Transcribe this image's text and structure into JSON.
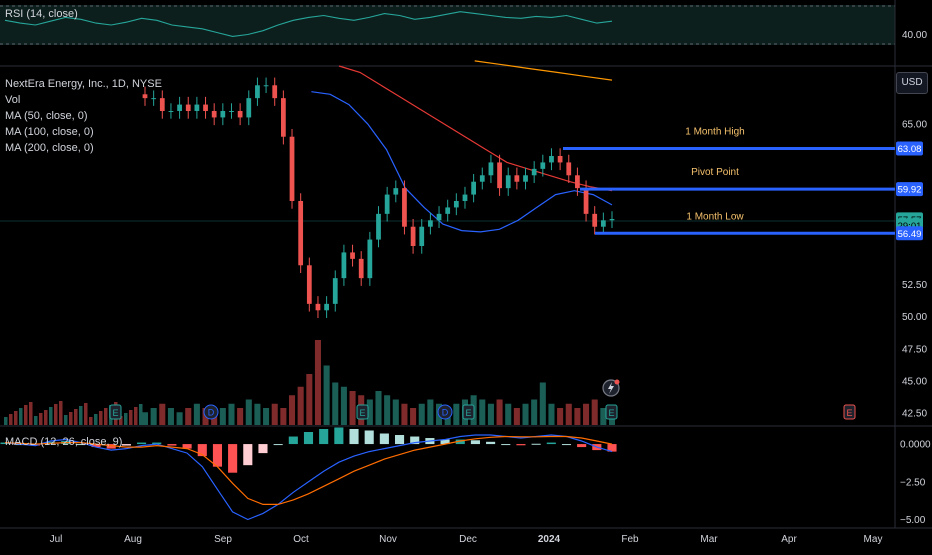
{
  "rsi_panel": {
    "label": "RSI (14, close)",
    "axis_label": "40.00"
  },
  "main_panel": {
    "symbol_line": "NextEra Energy, Inc., 1D, NYSE",
    "indicators": [
      "Vol",
      "MA (50, close, 0)",
      "MA (100, close, 0)",
      "MA (200, close, 0)"
    ],
    "currency": "USD",
    "earnings_marker": "E",
    "dividend_marker": "D"
  },
  "macd_panel": {
    "label": "MACD (12, 26, close, 9)"
  },
  "colors": {
    "up": "#26a69a",
    "down": "#ef5350",
    "ma50": "#2962ff",
    "ma100": "#e53935",
    "ma200": "#ff9800",
    "level_line": "#2962ff",
    "annotation_text": "#f5c16c",
    "rsi_line": "#26a69a",
    "macd_line": "#2962ff",
    "signal_line": "#ff6d00"
  },
  "chart_data": [
    {
      "type": "candlestick",
      "title": "NextEra Energy, Inc., 1D, NYSE",
      "x": [
        "Jul",
        "Aug",
        "Sep",
        "Oct",
        "Nov",
        "Dec",
        "2024",
        "Feb",
        "Mar",
        "Apr",
        "May"
      ],
      "y_ticks": [
        42.5,
        45.0,
        47.5,
        50.0,
        52.5,
        55.0,
        57.5,
        60.0,
        62.5,
        65.0,
        67.5
      ],
      "y_tick_labels": [
        "42.50",
        "45.00",
        "47.50",
        "50.00",
        "52.50",
        "",
        "",
        "",
        "",
        "65.00",
        ""
      ],
      "ylim": [
        41.5,
        69.5
      ],
      "close_series": [
        67,
        67,
        66,
        66,
        66.5,
        66,
        66.5,
        66,
        65.5,
        66,
        66,
        65.5,
        67,
        68,
        68,
        67,
        64,
        59,
        54,
        51,
        50.5,
        51,
        53,
        55,
        54.5,
        53,
        56,
        58,
        59.5,
        60,
        57,
        55.5,
        57,
        57.5,
        58,
        58.5,
        59,
        59.5,
        60.5,
        61,
        62,
        60,
        61,
        60.5,
        61,
        61.5,
        62,
        62.5,
        62,
        61,
        60,
        58,
        57,
        57.5,
        57.6
      ],
      "price_labels": [
        {
          "text": "63.08",
          "value": 63.08
        },
        {
          "text": "59.92",
          "value": 59.92
        },
        {
          "text": "57.57",
          "value": 57.57
        },
        {
          "text": "29:01",
          "value": 57.1
        },
        {
          "text": "56.49",
          "value": 56.49
        }
      ],
      "levels": [
        {
          "name": "1 Month High",
          "value": 63.08
        },
        {
          "name": "Pivot Point",
          "value": 59.92
        },
        {
          "name": "1 Month Low",
          "value": 56.49
        }
      ],
      "moving_averages": [
        {
          "name": "MA (50, close, 0)",
          "values": [
            null,
            null,
            null,
            67.5,
            67.3,
            66.5,
            65,
            63,
            60,
            58.5,
            57.2,
            56.7,
            56.6,
            56.8,
            57.5,
            58.5,
            59.5,
            59.8,
            59.5,
            58.7
          ]
        },
        {
          "name": "MA (100, close, 0)",
          "values": [
            null,
            null,
            null,
            null,
            69.5,
            69,
            68,
            67,
            66,
            65,
            64,
            63,
            62,
            61.5,
            61,
            60.5,
            60.1,
            59.8
          ]
        },
        {
          "name": "MA (200, close, 0)",
          "values": [
            null,
            null,
            null,
            null,
            null,
            null,
            null,
            null,
            69.9,
            69.6,
            69.3,
            69,
            68.7,
            68.4
          ]
        }
      ]
    },
    {
      "type": "bar",
      "title": "Vol",
      "values": [
        3,
        4,
        5,
        4,
        3,
        4,
        5,
        4,
        3,
        4,
        5,
        4,
        6,
        5,
        4,
        5,
        4,
        7,
        9,
        12,
        20,
        14,
        10,
        9,
        8,
        7,
        6,
        8,
        7,
        6,
        5,
        4,
        5,
        6,
        5,
        4,
        5,
        6,
        7,
        6,
        5,
        6,
        5,
        4,
        5,
        6,
        10,
        5,
        4,
        5,
        4,
        5,
        6,
        4,
        3
      ]
    },
    {
      "type": "line",
      "title": "RSI (14, close)",
      "y_ticks": [
        40
      ],
      "values": [
        55,
        52,
        50,
        54,
        58,
        56,
        52,
        50,
        53,
        57,
        55,
        50,
        48,
        46,
        42,
        38,
        40,
        44,
        50,
        55,
        58,
        60,
        57,
        55,
        58,
        62,
        60,
        56,
        58,
        61,
        64,
        62,
        60,
        58,
        57,
        59,
        58,
        60,
        56,
        52,
        54
      ]
    },
    {
      "type": "line",
      "title": "MACD (12, 26, close, 9)",
      "y_ticks": [
        0.0,
        -2.5,
        -5.0
      ],
      "y_tick_labels": [
        "0.0000",
        "−2.50",
        "−5.00"
      ],
      "ylim": [
        -5.3,
        0.8
      ],
      "series": [
        {
          "name": "MACD",
          "values": [
            0.1,
            0.0,
            -0.1,
            0.2,
            0.3,
            0.1,
            -0.2,
            -0.4,
            -0.3,
            -0.1,
            0.0,
            -0.3,
            -0.6,
            -1.5,
            -3.0,
            -4.5,
            -5.0,
            -4.6,
            -4.0,
            -3.2,
            -2.5,
            -1.8,
            -1.2,
            -0.8,
            -0.5,
            -0.3,
            -0.1,
            0.1,
            0.2,
            0.3,
            0.5,
            0.6,
            0.6,
            0.5,
            0.4,
            0.5,
            0.6,
            0.5,
            0.2,
            -0.2,
            -0.5
          ]
        },
        {
          "name": "Signal",
          "values": [
            0.1,
            0.05,
            0.0,
            0.05,
            0.1,
            0.1,
            0.0,
            -0.1,
            -0.2,
            -0.2,
            -0.1,
            -0.2,
            -0.3,
            -0.7,
            -1.5,
            -2.6,
            -3.6,
            -4.0,
            -4.0,
            -3.7,
            -3.3,
            -2.8,
            -2.3,
            -1.8,
            -1.4,
            -1.0,
            -0.7,
            -0.4,
            -0.2,
            0.0,
            0.2,
            0.35,
            0.45,
            0.5,
            0.48,
            0.48,
            0.5,
            0.5,
            0.4,
            0.2,
            0.0
          ]
        },
        {
          "name": "Histogram",
          "values": [
            0.1,
            0.0,
            -0.1,
            0.15,
            0.2,
            0.0,
            -0.2,
            -0.3,
            -0.1,
            0.1,
            0.1,
            -0.1,
            -0.3,
            -0.8,
            -1.5,
            -1.9,
            -1.4,
            -0.6,
            0.0,
            0.5,
            0.8,
            1.0,
            1.1,
            1.0,
            0.9,
            0.7,
            0.6,
            0.5,
            0.4,
            0.3,
            0.3,
            0.25,
            0.15,
            0.0,
            -0.08,
            0.02,
            0.1,
            0.0,
            -0.2,
            -0.4,
            -0.5
          ]
        }
      ]
    }
  ]
}
